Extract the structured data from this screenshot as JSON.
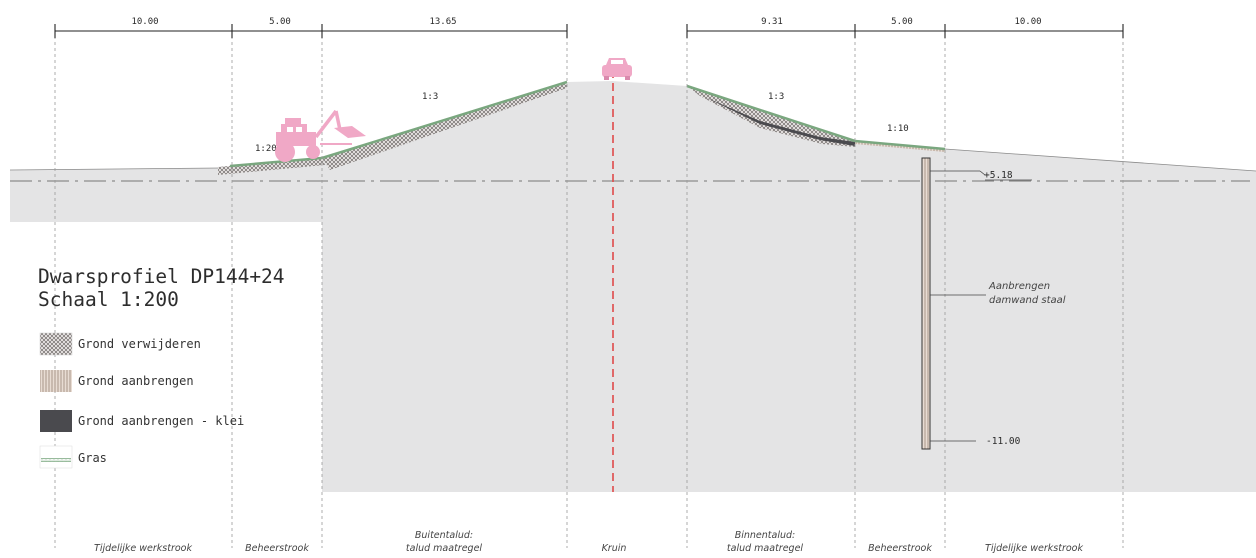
{
  "legend": {
    "title_line1": "Dwarsprofiel DP144+24",
    "title_line2": "Schaal 1:200",
    "items": [
      {
        "label": "Grond verwijderen",
        "pattern": "crosshatch"
      },
      {
        "label": "Grond aanbrengen",
        "pattern": "vertical-stripes"
      },
      {
        "label": "Grond aanbrengen - klei",
        "pattern": "dark-fill"
      },
      {
        "label": "Gras",
        "pattern": "green-zigzag"
      }
    ]
  },
  "dimensions": [
    "10.00",
    "5.00",
    "13.65",
    "9.31",
    "5.00",
    "10.00"
  ],
  "slopes": [
    "1:20",
    "1:3",
    "1:3",
    "1:10"
  ],
  "levels": {
    "top": "+5.18",
    "bottom": "-11.00"
  },
  "annotations": {
    "sheet_pile_line1": "Aanbrengen",
    "sheet_pile_line2": "damwand staal"
  },
  "zones": [
    {
      "line1": "Tijdelijke werkstrook",
      "line2": ""
    },
    {
      "line1": "Beheerstrook",
      "line2": ""
    },
    {
      "line1": "Buitentalud:",
      "line2": "talud maatregel"
    },
    {
      "line1": "Kruin",
      "line2": ""
    },
    {
      "line1": "Binnentalud:",
      "line2": "talud maatregel"
    },
    {
      "line1": "Beheerstrook",
      "line2": ""
    },
    {
      "line1": "Tijdelijke werkstrook",
      "line2": ""
    }
  ],
  "colors": {
    "ground": "#e4e4e5",
    "grass": "#7aa77f",
    "clay": "#4a4a4e",
    "machinery": "#f0a8c6",
    "crest_axis": "#e04a4a",
    "dimension_line": "#222222"
  },
  "icons": [
    "tractor-excavator-icon",
    "car-icon"
  ]
}
